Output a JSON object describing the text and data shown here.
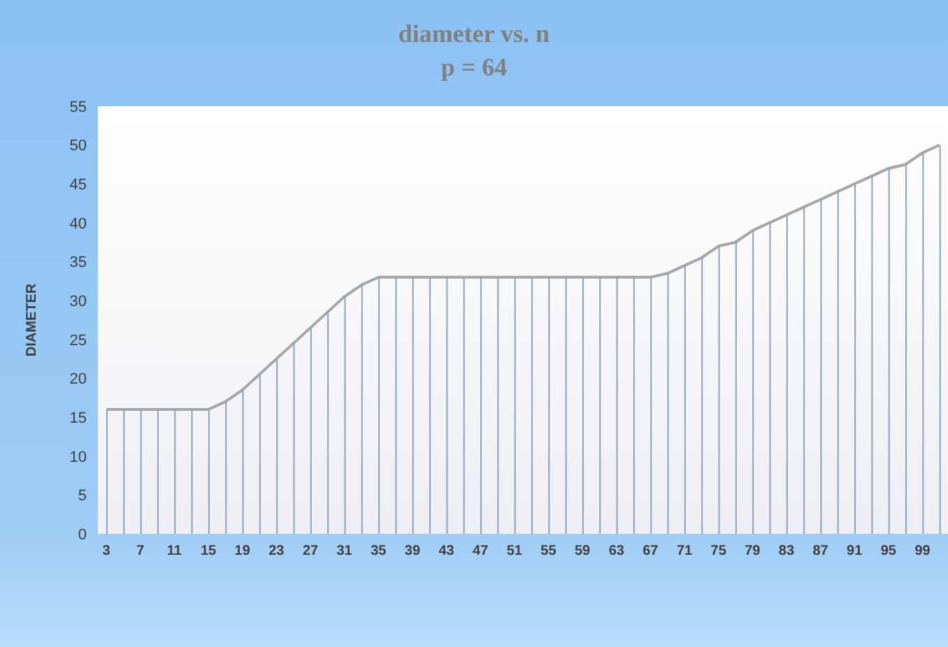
{
  "chart_data": {
    "type": "area",
    "title": "diameter vs. n",
    "subtitle": "p = 64",
    "ylabel": "DIAMETER",
    "categories": [
      "3",
      null,
      "7",
      null,
      "11",
      null,
      "15",
      null,
      "19",
      null,
      "23",
      null,
      "27",
      null,
      "31",
      null,
      "35",
      null,
      "39",
      null,
      "43",
      null,
      "47",
      null,
      "51",
      null,
      "55",
      null,
      "59",
      null,
      "63",
      null,
      "67",
      null,
      "71",
      null,
      "75",
      null,
      "79",
      null,
      "83",
      null,
      "87",
      null,
      "91",
      null,
      "95",
      null,
      "99",
      null
    ],
    "series": [
      {
        "type": "bar",
        "color": "#8aa2bb",
        "values": [
          16,
          16,
          16,
          16,
          16,
          16,
          16,
          17,
          18.5,
          20.5,
          22.5,
          24.5,
          26.5,
          28.5,
          30.5,
          32,
          33,
          33,
          33,
          33,
          33,
          33,
          33,
          33,
          33,
          33,
          33,
          33,
          33,
          33,
          33,
          33,
          33,
          33.5,
          34.5,
          35.5,
          37,
          37.5,
          39,
          40,
          41,
          42,
          43,
          44,
          45,
          46,
          47,
          47.5,
          49,
          50
        ]
      },
      {
        "color": "#a6a6a6",
        "values": [
          16,
          16,
          16,
          16,
          16,
          16,
          16,
          17,
          18.5,
          20.5,
          22.5,
          24.5,
          26.5,
          28.5,
          30.5,
          32,
          33,
          33,
          33,
          33,
          33,
          33,
          33,
          33,
          33,
          33,
          33,
          33,
          33,
          33,
          33,
          33,
          33,
          33.5,
          34.5,
          35.5,
          37,
          37.5,
          39,
          40,
          41,
          42,
          43,
          44,
          45,
          46,
          47,
          47.5,
          49,
          50
        ]
      }
    ],
    "ylim": [
      0,
      55
    ],
    "yticks": [
      0,
      5,
      10,
      15,
      20,
      25,
      30,
      35,
      40,
      45,
      50,
      55
    ]
  }
}
